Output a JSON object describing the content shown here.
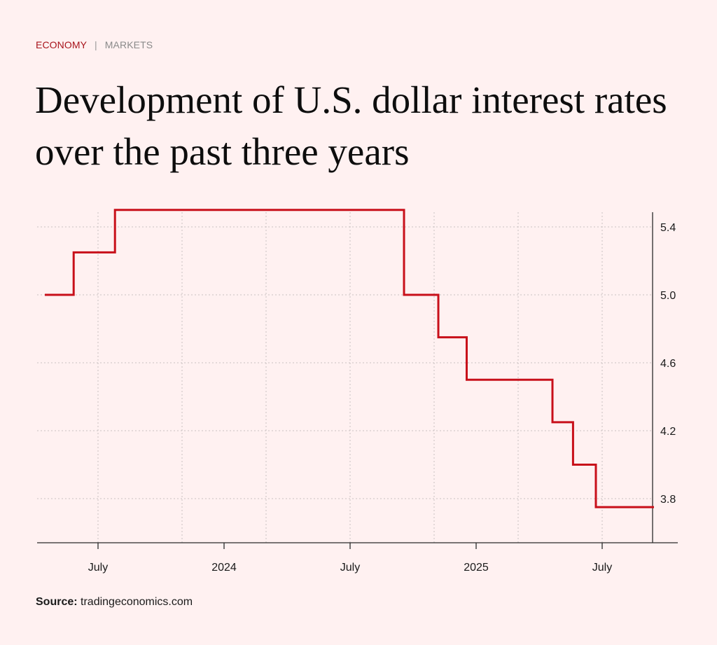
{
  "header": {
    "category": "ECONOMY",
    "separator": "|",
    "subcategory": "MARKETS",
    "title": "Development of U.S. dollar interest rates over the past three years"
  },
  "footer": {
    "source_label": "Source:",
    "source_value": "tradingeconomics.com"
  },
  "colors": {
    "line": "#c8101a",
    "category": "#a8141c",
    "background": "#fff1f1"
  },
  "chart_data": {
    "type": "line",
    "step": true,
    "title": "Development of U.S. dollar interest rates over the past three years",
    "xlabel": "",
    "ylabel": "",
    "x_range": [
      "2023-04-15",
      "2025-09-15"
    ],
    "ylim": [
      3.55,
      5.55
    ],
    "y_axis_position": "right",
    "grid": true,
    "legend": "none",
    "yticks": [
      5.4,
      5.0,
      4.6,
      4.2,
      3.8
    ],
    "ytick_labels": [
      "5.4",
      "5.0",
      "4.6",
      "4.2",
      "3.8"
    ],
    "xticks": [
      {
        "date": "2023-07-01",
        "label": "July"
      },
      {
        "date": "2024-01-01",
        "label": "2024"
      },
      {
        "date": "2024-07-01",
        "label": "July"
      },
      {
        "date": "2025-01-01",
        "label": "2025"
      },
      {
        "date": "2025-07-01",
        "label": "July"
      }
    ],
    "x_gridlines": [
      "2023-07-01",
      "2023-11-01",
      "2024-03-01",
      "2024-07-01",
      "2024-11-01",
      "2025-03-01",
      "2025-07-01"
    ],
    "series": [
      {
        "name": "U.S. dollar interest rate",
        "points": [
          {
            "x": "2023-04-15",
            "y": 5.0
          },
          {
            "x": "2023-05-27",
            "y": 5.25
          },
          {
            "x": "2023-07-26",
            "y": 5.5
          },
          {
            "x": "2024-09-18",
            "y": 5.0
          },
          {
            "x": "2024-11-07",
            "y": 4.75
          },
          {
            "x": "2024-12-18",
            "y": 4.5
          },
          {
            "x": "2025-04-20",
            "y": 4.25
          },
          {
            "x": "2025-05-20",
            "y": 4.0
          },
          {
            "x": "2025-06-22",
            "y": 3.75
          },
          {
            "x": "2025-09-15",
            "y": 3.75
          }
        ]
      }
    ]
  }
}
